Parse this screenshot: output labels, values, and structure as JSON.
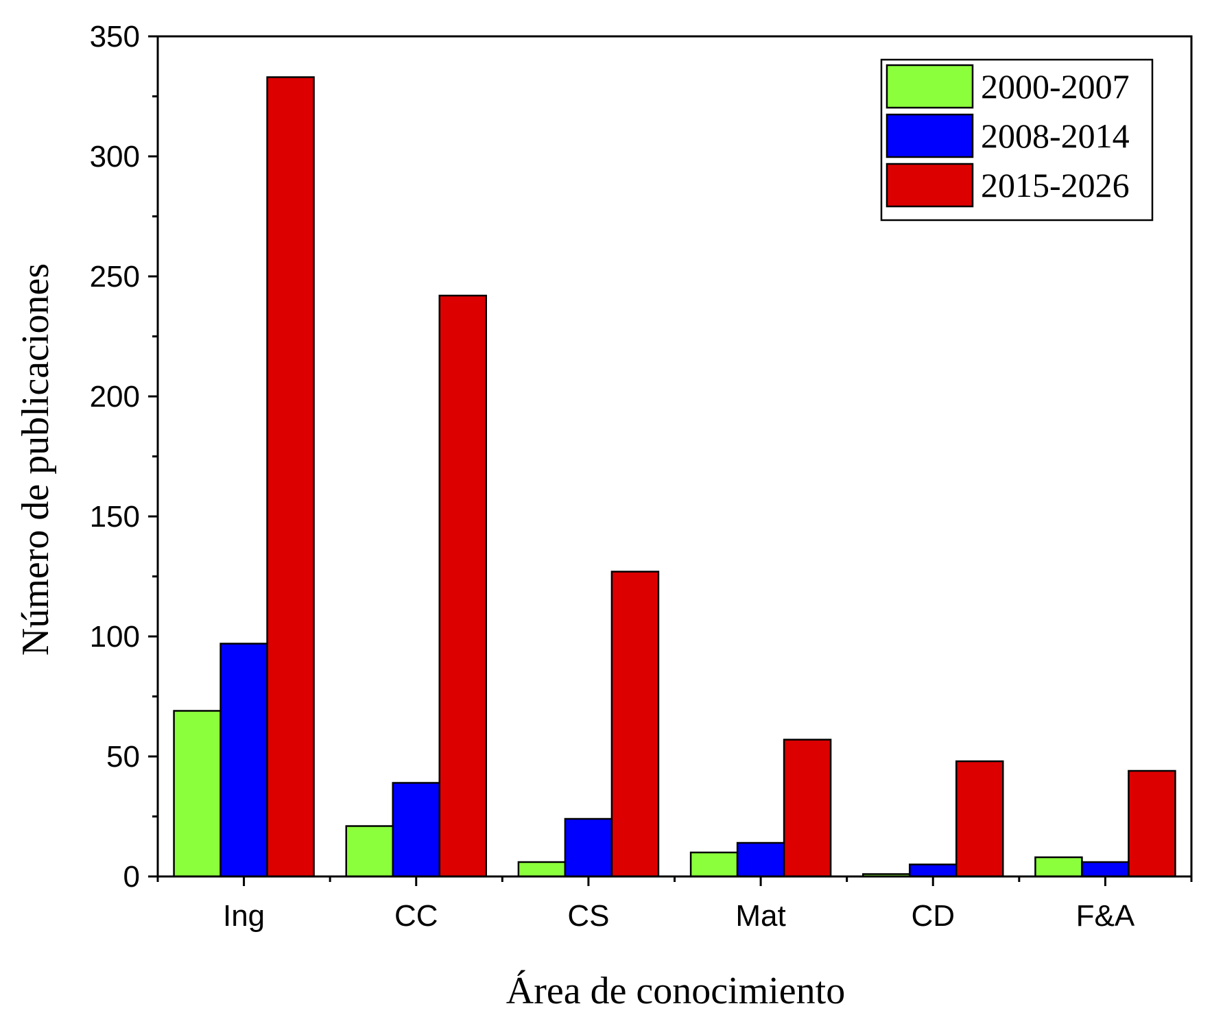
{
  "chart_data": {
    "type": "bar",
    "title": "",
    "xlabel": "Área de conocimiento",
    "ylabel": "Número de publicaciones",
    "categories": [
      "Ing",
      "CC",
      "CS",
      "Mat",
      "CD",
      "F&A"
    ],
    "series": [
      {
        "name": "2000-2007",
        "color": "#8cff3c",
        "values": [
          69,
          21,
          6,
          10,
          1,
          8
        ]
      },
      {
        "name": "2008-2014",
        "color": "#0000ff",
        "values": [
          97,
          39,
          24,
          14,
          5,
          6
        ]
      },
      {
        "name": "2015-2026",
        "color": "#dd0000",
        "values": [
          333,
          242,
          127,
          57,
          48,
          44
        ]
      }
    ],
    "ylim": [
      0,
      350
    ],
    "yticks": [
      "0",
      "50",
      "100",
      "150",
      "200",
      "250",
      "300",
      "350"
    ],
    "grid": false,
    "legend_position": "top-right"
  }
}
